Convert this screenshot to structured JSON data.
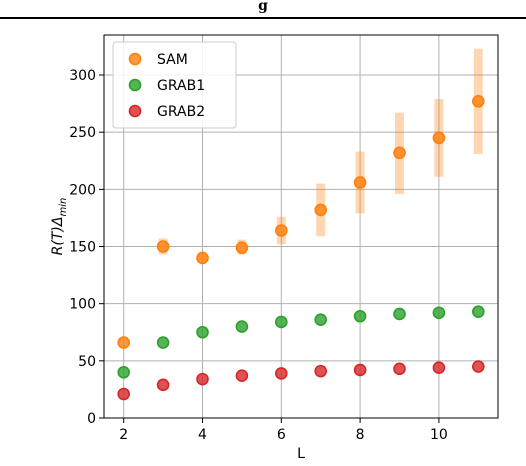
{
  "header": {
    "text": "g"
  },
  "chart_data": {
    "type": "scatter",
    "title": "",
    "xlabel": "L",
    "ylabel": "R(T)Δ",
    "ylabel_subscript": "min",
    "xlim": [
      1.5,
      11.5
    ],
    "ylim": [
      0,
      335
    ],
    "xticks": [
      2,
      4,
      6,
      8,
      10
    ],
    "yticks": [
      0,
      50,
      100,
      150,
      200,
      250,
      300
    ],
    "grid": true,
    "legend_position": "top-left",
    "series": [
      {
        "name": "SAM",
        "color": "#ff7f0e",
        "x": [
          2,
          3,
          4,
          5,
          6,
          7,
          8,
          9,
          10,
          11
        ],
        "y": [
          66,
          150,
          140,
          149,
          164,
          182,
          206,
          232,
          245,
          277
        ],
        "err_low": [
          66,
          143,
          137,
          143,
          152,
          159,
          179,
          196,
          211,
          231
        ],
        "err_high": [
          66,
          157,
          143,
          156,
          176,
          205,
          233,
          267,
          279,
          323
        ]
      },
      {
        "name": "GRAB1",
        "color": "#2ca02c",
        "x": [
          2,
          3,
          4,
          5,
          6,
          7,
          8,
          9,
          10,
          11
        ],
        "y": [
          40,
          66,
          75,
          80,
          84,
          86,
          89,
          91,
          92,
          93
        ]
      },
      {
        "name": "GRAB2",
        "color": "#d62728",
        "x": [
          2,
          3,
          4,
          5,
          6,
          7,
          8,
          9,
          10,
          11
        ],
        "y": [
          21,
          29,
          34,
          37,
          39,
          41,
          42,
          43,
          44,
          45
        ]
      }
    ]
  }
}
